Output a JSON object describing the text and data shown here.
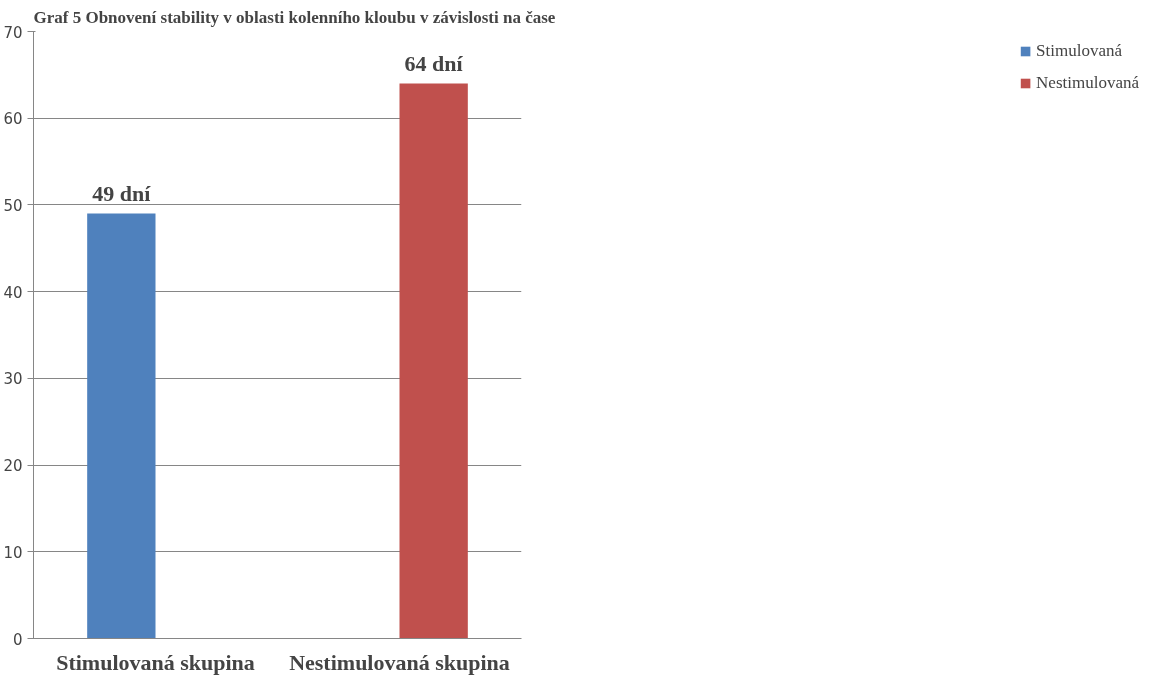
{
  "chart_data": {
    "type": "bar",
    "title": "Graf 5 Obnovení stability v oblasti kolenního kloubu v závislosti na čase",
    "categories": [
      "Stimulovaná skupina",
      "Nestimulovaná skupina"
    ],
    "series": [
      {
        "name": "Stimulovaná",
        "color": "#4f81bd",
        "values": [
          49,
          null
        ],
        "value_labels": [
          "49 dní",
          null
        ]
      },
      {
        "name": "Nestimulovaná",
        "color": "#c0504d",
        "values": [
          null,
          64
        ],
        "value_labels": [
          null,
          "64 dní"
        ]
      }
    ],
    "ylim": [
      0,
      70
    ],
    "yticks": [
      0,
      10,
      20,
      30,
      40,
      50,
      60,
      70
    ],
    "grid": "y",
    "legend": "right"
  }
}
